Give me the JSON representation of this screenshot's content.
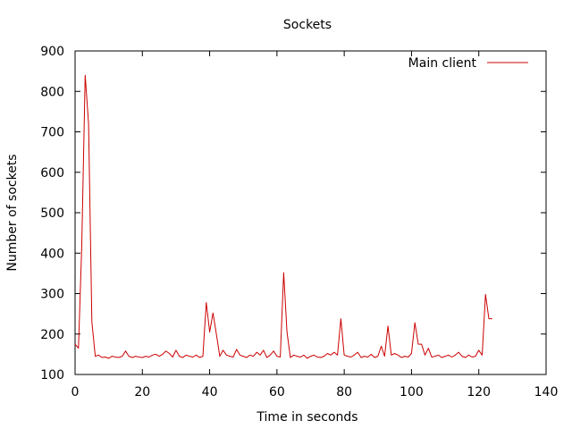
{
  "chart_data": {
    "type": "line",
    "title": "Sockets",
    "xlabel": "Time in seconds",
    "ylabel": "Number of sockets",
    "xlim": [
      0,
      140
    ],
    "ylim": [
      100,
      900
    ],
    "xticks": [
      0,
      20,
      40,
      60,
      80,
      100,
      120,
      140
    ],
    "yticks": [
      100,
      200,
      300,
      400,
      500,
      600,
      700,
      800,
      900
    ],
    "grid": false,
    "legend_position": "top-right",
    "series": [
      {
        "name": "Main client",
        "color": "#cc0000",
        "x": [
          0,
          1,
          2,
          3,
          4,
          5,
          6,
          7,
          8,
          9,
          10,
          11,
          12,
          13,
          14,
          15,
          16,
          17,
          18,
          19,
          20,
          21,
          22,
          23,
          24,
          25,
          26,
          27,
          28,
          29,
          30,
          31,
          32,
          33,
          34,
          35,
          36,
          37,
          38,
          39,
          40,
          41,
          42,
          43,
          44,
          45,
          46,
          47,
          48,
          49,
          50,
          51,
          52,
          53,
          54,
          55,
          56,
          57,
          58,
          59,
          60,
          61,
          62,
          63,
          64,
          65,
          66,
          67,
          68,
          69,
          70,
          71,
          72,
          73,
          74,
          75,
          76,
          77,
          78,
          79,
          80,
          81,
          82,
          83,
          84,
          85,
          86,
          87,
          88,
          89,
          90,
          91,
          92,
          93,
          94,
          95,
          96,
          97,
          98,
          99,
          100,
          101,
          102,
          103,
          104,
          105,
          106,
          107,
          108,
          109,
          110,
          111,
          112,
          113,
          114,
          115,
          116,
          117,
          118,
          119,
          120,
          121,
          122,
          123,
          124
        ],
        "y": [
          175,
          165,
          420,
          840,
          720,
          230,
          145,
          148,
          142,
          143,
          140,
          145,
          143,
          142,
          145,
          158,
          145,
          142,
          145,
          143,
          142,
          145,
          143,
          148,
          150,
          145,
          150,
          158,
          152,
          143,
          160,
          145,
          142,
          148,
          145,
          143,
          148,
          142,
          145,
          278,
          205,
          252,
          200,
          145,
          160,
          148,
          145,
          143,
          162,
          148,
          145,
          142,
          148,
          145,
          155,
          148,
          160,
          142,
          148,
          158,
          145,
          143,
          352,
          205,
          142,
          148,
          145,
          143,
          148,
          140,
          145,
          148,
          143,
          142,
          145,
          152,
          148,
          155,
          148,
          238,
          148,
          145,
          143,
          148,
          155,
          142,
          145,
          143,
          150,
          142,
          145,
          170,
          145,
          220,
          148,
          152,
          148,
          142,
          145,
          143,
          152,
          228,
          175,
          175,
          148,
          165,
          143,
          145,
          148,
          142,
          145,
          148,
          143,
          148,
          155,
          145,
          142,
          148,
          143,
          145,
          160,
          148,
          298,
          238,
          238
        ]
      }
    ]
  }
}
